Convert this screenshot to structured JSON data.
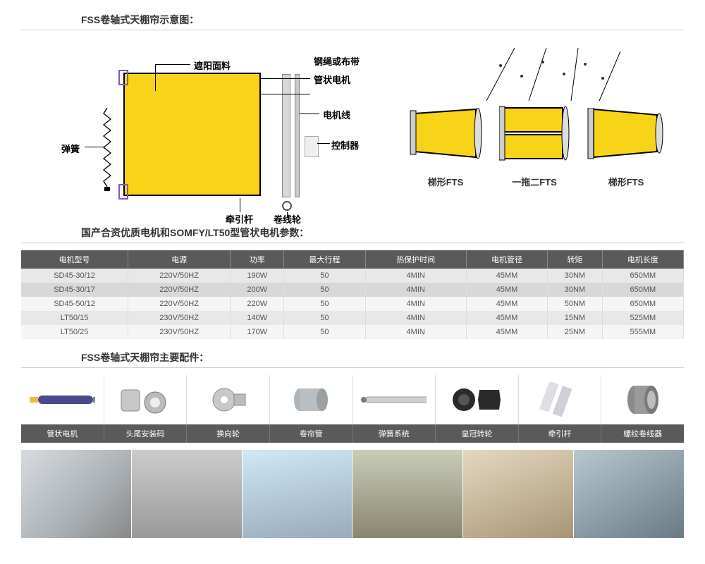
{
  "colors": {
    "accent_yellow": "#f7d417",
    "header_gray": "#5a5a5a",
    "dot_red": "#c00"
  },
  "section1": {
    "title": "FSS卷轴式天棚帘示意图："
  },
  "diagram_labels": {
    "fabric": "遮阳面料",
    "spring": "弹簧",
    "rod": "牵引杆",
    "reel": "卷线轮",
    "rope": "钢绳或布带",
    "tube_motor": "管状电机",
    "motor_wire": "电机线",
    "controller": "控制器"
  },
  "shape_captions": {
    "s1": "梯形FTS",
    "s2": "一拖二FTS",
    "s3": "梯形FTS"
  },
  "section2": {
    "title": "国产合资优质电机和SOMFY/LT50型管状电机参数："
  },
  "spec_table": {
    "headers": [
      "电机型号",
      "电源",
      "功率",
      "最大行程",
      "热保护时间",
      "电机管径",
      "转矩",
      "电机长度"
    ],
    "rows": [
      [
        "SD45-30/12",
        "220V/50HZ",
        "190W",
        "50",
        "4MIN",
        "45MM",
        "30NM",
        "650MM"
      ],
      [
        "SD45-30/17",
        "220V/50HZ",
        "200W",
        "50",
        "4MIN",
        "45MM",
        "30NM",
        "650MM"
      ],
      [
        "SD45-50/12",
        "220V/50HZ",
        "220W",
        "50",
        "4MIN",
        "45MM",
        "50NM",
        "650MM"
      ],
      [
        "LT50/15",
        "230V/50HZ",
        "140W",
        "50",
        "4MIN",
        "45MM",
        "15NM",
        "525MM"
      ],
      [
        "LT50/25",
        "230V/50HZ",
        "170W",
        "50",
        "4MIN",
        "45MM",
        "25NM",
        "555MM"
      ]
    ]
  },
  "section3": {
    "title": "FSS卷轴式天棚帘主要配件："
  },
  "parts": {
    "labels": [
      "管状电机",
      "头尾安装码",
      "换向轮",
      "卷帘管",
      "弹簧系统",
      "皇冠转轮",
      "牵引杆",
      "螺纹卷线器"
    ]
  }
}
